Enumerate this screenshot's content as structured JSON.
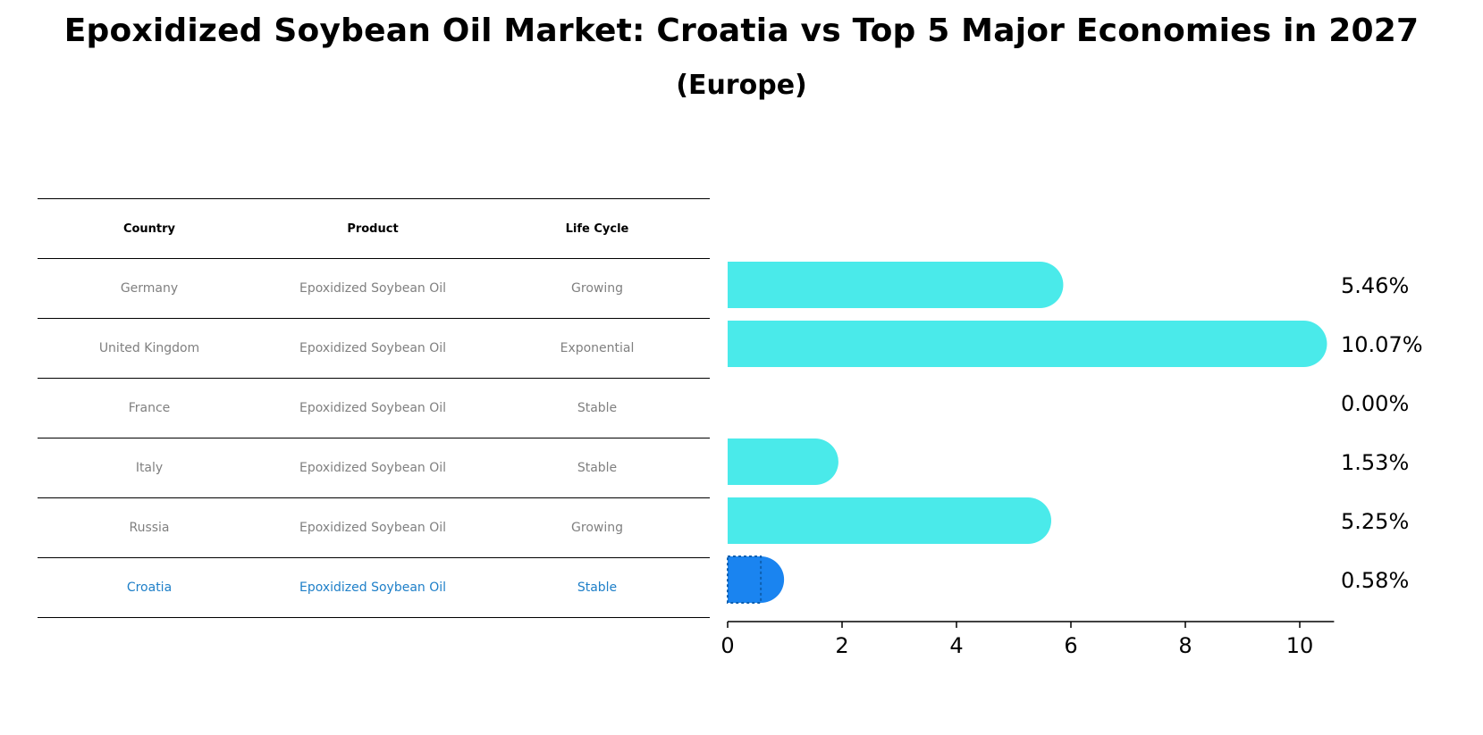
{
  "title": "Epoxidized Soybean Oil Market: Croatia vs Top 5 Major Economies in 2027",
  "subtitle": "(Europe)",
  "table": {
    "headers": [
      "Country",
      "Product",
      "Life Cycle"
    ],
    "rows": [
      [
        "Germany",
        "Epoxidized Soybean Oil",
        "Growing"
      ],
      [
        "United Kingdom",
        "Epoxidized Soybean Oil",
        "Exponential"
      ],
      [
        "France",
        "Epoxidized Soybean Oil",
        "Stable"
      ],
      [
        "Italy",
        "Epoxidized Soybean Oil",
        "Stable"
      ],
      [
        "Russia",
        "Epoxidized Soybean Oil",
        "Growing"
      ],
      [
        "Croatia",
        "Epoxidized Soybean Oil",
        "Stable"
      ]
    ],
    "highlight_row": 5,
    "highlight_color": "#1e7fc8",
    "text_color": "#808080"
  },
  "chart_data": {
    "type": "bar",
    "orientation": "horizontal",
    "categories": [
      "Germany",
      "United Kingdom",
      "France",
      "Italy",
      "Russia",
      "Croatia"
    ],
    "values": [
      5.46,
      10.07,
      0.0,
      1.53,
      5.25,
      0.58
    ],
    "value_labels": [
      "5.46%",
      "10.07%",
      "0.00%",
      "1.53%",
      "5.25%",
      "0.58%"
    ],
    "xticks": [
      0,
      2,
      4,
      6,
      8,
      10
    ],
    "xlim": [
      0,
      10.6
    ],
    "bar_color": "#4aeaea",
    "highlight_color": "#1a84f0",
    "highlight_index": 5,
    "xlabel": "",
    "ylabel": ""
  }
}
